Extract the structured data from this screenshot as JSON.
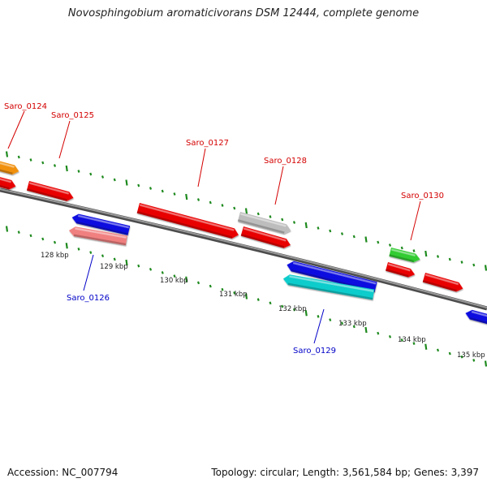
{
  "title": "Novosphingobium aromaticivorans DSM 12444, complete genome",
  "footer": {
    "accession": "Accession: NC_007794",
    "summary": "Topology: circular; Length: 3,561,584 bp; Genes: 3,397"
  },
  "colors": {
    "backbone": "#7a7a7a",
    "tick": "#1e8a1e",
    "forward_label": "#d40000",
    "reverse_label": "#0000c8",
    "red": "#e80000",
    "blue": "#1010e0",
    "orange": "#f0900a",
    "gray": "#bdbdbd",
    "pink": "#f08080",
    "cyan": "#10cccc",
    "green": "#33cc33"
  },
  "scale_labels": [
    "128 kbp",
    "129 kbp",
    "130 kbp",
    "131 kbp",
    "132 kbp",
    "133 kbp",
    "134 kbp",
    "135 kbp"
  ],
  "gene_labels": {
    "top": [
      "Saro_0124",
      "Saro_0125",
      "Saro_0127",
      "Saro_0128",
      "Saro_0130"
    ],
    "bottom": [
      "Saro_0126",
      "Saro_0129"
    ]
  },
  "genes": [
    {
      "name": "Saro_0124",
      "color": "orange",
      "strand": "+"
    },
    {
      "name": "Saro_0125",
      "color": "red",
      "strand": "+"
    },
    {
      "name": "Saro_0126",
      "color": "pink",
      "strand": "-"
    },
    {
      "name": "Saro_0127",
      "color": "red",
      "strand": "+"
    },
    {
      "name": "Saro_0128",
      "color": "gray",
      "strand": "+"
    },
    {
      "name": "Saro_0129",
      "color": "cyan",
      "strand": "-"
    },
    {
      "name": "Saro_0130",
      "color": "green",
      "strand": "+"
    }
  ]
}
